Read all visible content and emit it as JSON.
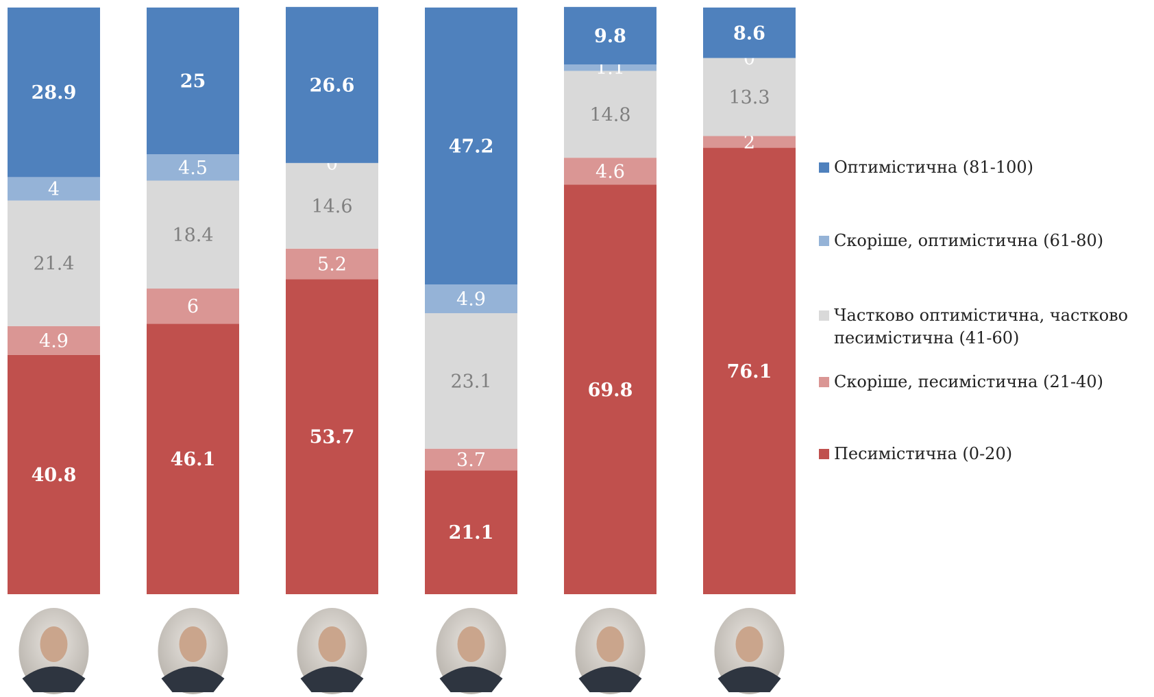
{
  "chart_data": {
    "type": "stacked_bar",
    "categories": [
      null,
      null,
      null,
      null,
      null,
      null
    ],
    "ylim": [
      0,
      100
    ],
    "series": [
      {
        "name": "Песимістична (0-20)",
        "color": "#c0504d",
        "values": [
          40.8,
          46.1,
          53.7,
          21.1,
          69.8,
          76.1
        ]
      },
      {
        "name": "Скоріше, песимістична (21-40)",
        "color": "#da9694",
        "values": [
          4.9,
          6,
          5.2,
          3.7,
          4.6,
          2
        ]
      },
      {
        "name": "Частково оптимістична, частково песимістична (41-60)",
        "color": "#d9d9d9",
        "values": [
          21.4,
          18.4,
          14.6,
          23.1,
          14.8,
          13.3
        ]
      },
      {
        "name": "Скоріше, оптимістична (61-80)",
        "color": "#95b3d7",
        "values": [
          4,
          4.5,
          0,
          4.9,
          1.1,
          0
        ]
      },
      {
        "name": "Оптимістична (81-100)",
        "color": "#4f81bd",
        "values": [
          28.9,
          25,
          26.6,
          47.2,
          9.8,
          8.6
        ]
      }
    ]
  }
}
